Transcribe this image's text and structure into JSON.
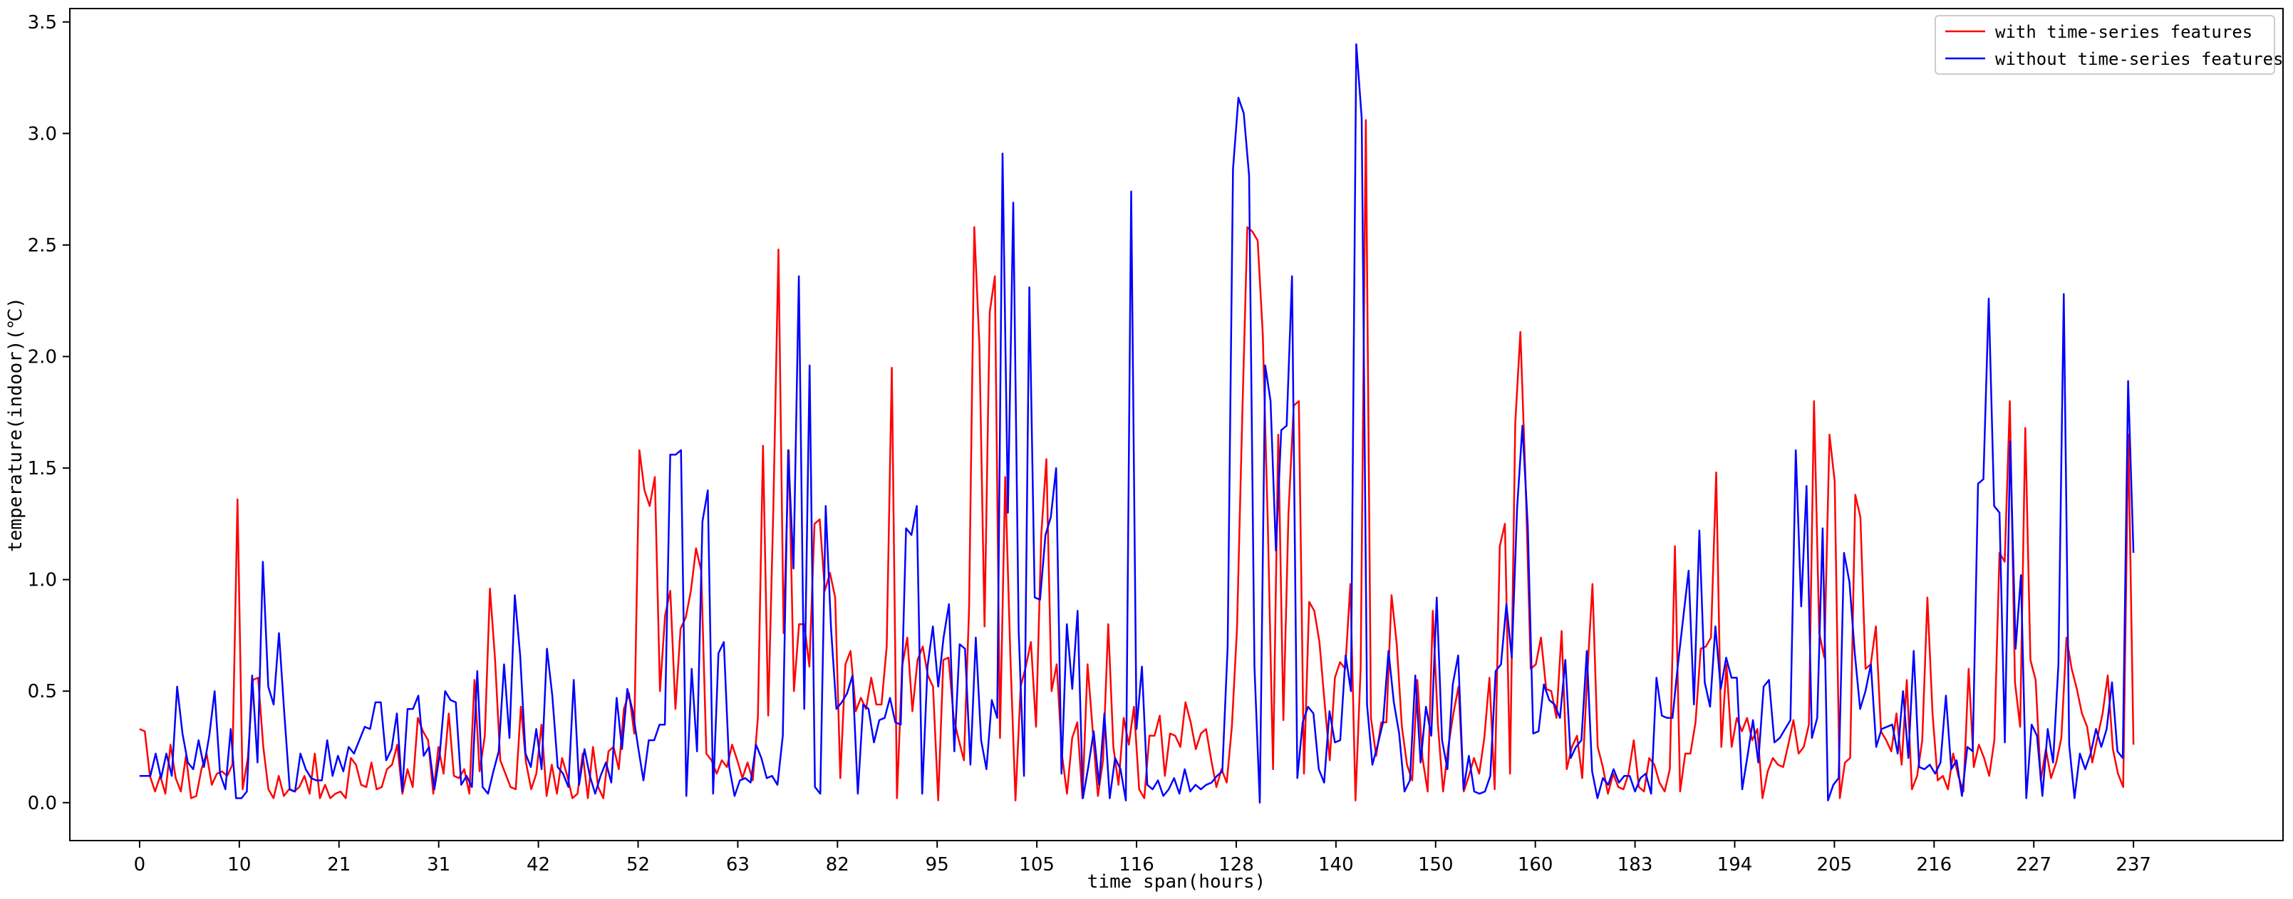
{
  "chart_data": {
    "type": "line",
    "xlabel": "time span(hours)",
    "ylabel": "temperature(indoor)(℃)",
    "xtick_labels": [
      "0",
      "10",
      "21",
      "31",
      "42",
      "52",
      "63",
      "82",
      "95",
      "105",
      "116",
      "128",
      "140",
      "150",
      "160",
      "183",
      "194",
      "205",
      "216",
      "227",
      "237"
    ],
    "yticks": [
      0.0,
      0.5,
      1.0,
      1.5,
      2.0,
      2.5,
      3.0,
      3.5
    ],
    "ytick_labels": [
      "0.0",
      "0.5",
      "1.0",
      "1.5",
      "2.0",
      "2.5",
      "3.0",
      "3.5"
    ],
    "ylim": [
      -0.17,
      3.56
    ],
    "xlim": [
      -7,
      215
    ],
    "grid": false,
    "legend_position": "top-right",
    "series": [
      {
        "name": "with time-series features",
        "color": "#ff0000",
        "values": [
          0.33,
          0.32,
          0.12,
          0.05,
          0.12,
          0.04,
          0.26,
          0.11,
          0.05,
          0.21,
          0.02,
          0.03,
          0.15,
          0.22,
          0.08,
          0.13,
          0.14,
          0.12,
          0.17,
          1.36,
          0.06,
          0.2,
          0.55,
          0.56,
          0.25,
          0.06,
          0.02,
          0.12,
          0.03,
          0.06,
          0.05,
          0.07,
          0.12,
          0.04,
          0.22,
          0.02,
          0.08,
          0.02,
          0.04,
          0.05,
          0.02,
          0.2,
          0.17,
          0.08,
          0.07,
          0.18,
          0.06,
          0.07,
          0.15,
          0.17,
          0.26,
          0.04,
          0.15,
          0.07,
          0.38,
          0.32,
          0.28,
          0.04,
          0.25,
          0.13,
          0.4,
          0.12,
          0.11,
          0.15,
          0.04,
          0.55,
          0.14,
          0.3,
          0.96,
          0.64,
          0.19,
          0.13,
          0.07,
          0.06,
          0.43,
          0.18,
          0.06,
          0.13,
          0.35,
          0.03,
          0.17,
          0.04,
          0.2,
          0.12,
          0.02,
          0.04,
          0.22,
          0.02,
          0.25,
          0.07,
          0.02,
          0.23,
          0.25,
          0.15,
          0.42,
          0.49,
          0.31,
          1.58,
          1.4,
          1.33,
          1.46,
          0.5,
          0.84,
          0.95,
          0.42,
          0.78,
          0.83,
          0.95,
          1.14,
          1.04,
          0.22,
          0.19,
          0.13,
          0.19,
          0.16,
          0.26,
          0.19,
          0.11,
          0.18,
          0.1,
          0.38,
          1.6,
          0.39,
          1.32,
          2.48,
          0.76,
          1.58,
          0.5,
          0.8,
          0.8,
          0.61,
          1.25,
          1.27,
          0.95,
          1.03,
          0.92,
          0.11,
          0.62,
          0.68,
          0.41,
          0.47,
          0.42,
          0.56,
          0.44,
          0.44,
          0.7,
          1.95,
          0.02,
          0.61,
          0.74,
          0.41,
          0.64,
          0.7,
          0.57,
          0.52,
          0.01,
          0.64,
          0.65,
          0.38,
          0.28,
          0.19,
          0.87,
          2.58,
          2.05,
          0.79,
          2.2,
          2.36,
          0.29,
          1.46,
          0.66,
          0.01,
          0.52,
          0.61,
          0.72,
          0.34,
          1.2,
          1.54,
          0.5,
          0.62,
          0.22,
          0.04,
          0.29,
          0.36,
          0.02,
          0.62,
          0.32,
          0.03,
          0.19,
          0.8,
          0.25,
          0.08,
          0.38,
          0.26,
          0.43,
          0.06,
          0.02,
          0.3,
          0.3,
          0.39,
          0.12,
          0.31,
          0.3,
          0.25,
          0.45,
          0.36,
          0.24,
          0.31,
          0.33,
          0.19,
          0.07,
          0.15,
          0.09,
          0.34,
          0.78,
          1.72,
          2.58,
          2.56,
          2.52,
          2.1,
          1.23,
          0.15,
          1.65,
          0.37,
          1.3,
          1.78,
          1.8,
          0.13,
          0.9,
          0.86,
          0.72,
          0.45,
          0.19,
          0.56,
          0.63,
          0.6,
          0.98,
          0.01,
          0.61,
          3.06,
          0.38,
          0.21,
          0.36,
          0.36,
          0.93,
          0.71,
          0.34,
          0.17,
          0.1,
          0.55,
          0.2,
          0.05,
          0.86,
          0.35,
          0.05,
          0.25,
          0.4,
          0.52,
          0.05,
          0.12,
          0.2,
          0.13,
          0.29,
          0.56,
          0.06,
          1.15,
          1.25,
          0.13,
          1.7,
          2.11,
          1.45,
          0.6,
          0.62,
          0.74,
          0.51,
          0.5,
          0.38,
          0.77,
          0.15,
          0.25,
          0.3,
          0.11,
          0.58,
          0.98,
          0.25,
          0.16,
          0.04,
          0.13,
          0.07,
          0.06,
          0.13,
          0.28,
          0.07,
          0.05,
          0.2,
          0.17,
          0.09,
          0.05,
          0.15,
          1.15,
          0.05,
          0.22,
          0.22,
          0.36,
          0.69,
          0.7,
          0.74,
          1.48,
          0.25,
          0.62,
          0.25,
          0.38,
          0.32,
          0.38,
          0.28,
          0.33,
          0.02,
          0.14,
          0.2,
          0.17,
          0.16,
          0.26,
          0.37,
          0.22,
          0.25,
          0.35,
          1.8,
          0.76,
          0.65,
          1.65,
          1.44,
          0.02,
          0.18,
          0.2,
          1.38,
          1.28,
          0.6,
          0.62,
          0.79,
          0.32,
          0.28,
          0.23,
          0.4,
          0.17,
          0.55,
          0.06,
          0.12,
          0.28,
          0.92,
          0.4,
          0.1,
          0.12,
          0.06,
          0.22,
          0.12,
          0.05,
          0.6,
          0.16,
          0.26,
          0.2,
          0.12,
          0.28,
          1.12,
          1.08,
          1.8,
          0.54,
          0.34,
          1.68,
          0.64,
          0.55,
          0.1,
          0.24,
          0.11,
          0.18,
          0.29,
          0.74,
          0.6,
          0.51,
          0.4,
          0.34,
          0.18,
          0.29,
          0.4,
          0.57,
          0.24,
          0.13,
          0.07,
          1.65,
          0.26
        ]
      },
      {
        "name": "without time-series features",
        "color": "#0000ff",
        "values": [
          0.12,
          0.12,
          0.12,
          0.22,
          0.11,
          0.22,
          0.12,
          0.52,
          0.31,
          0.18,
          0.15,
          0.28,
          0.16,
          0.3,
          0.5,
          0.13,
          0.06,
          0.33,
          0.02,
          0.02,
          0.05,
          0.57,
          0.18,
          1.08,
          0.52,
          0.44,
          0.76,
          0.4,
          0.06,
          0.05,
          0.22,
          0.15,
          0.11,
          0.1,
          0.1,
          0.28,
          0.12,
          0.21,
          0.14,
          0.25,
          0.22,
          0.28,
          0.34,
          0.33,
          0.45,
          0.45,
          0.19,
          0.24,
          0.4,
          0.05,
          0.42,
          0.42,
          0.48,
          0.21,
          0.25,
          0.06,
          0.22,
          0.5,
          0.46,
          0.45,
          0.08,
          0.12,
          0.07,
          0.59,
          0.07,
          0.04,
          0.14,
          0.23,
          0.62,
          0.29,
          0.93,
          0.66,
          0.22,
          0.16,
          0.33,
          0.15,
          0.69,
          0.48,
          0.16,
          0.13,
          0.07,
          0.55,
          0.08,
          0.24,
          0.12,
          0.04,
          0.12,
          0.18,
          0.09,
          0.47,
          0.24,
          0.51,
          0.41,
          0.25,
          0.1,
          0.28,
          0.28,
          0.35,
          0.35,
          1.56,
          1.56,
          1.58,
          0.03,
          0.6,
          0.23,
          1.26,
          1.4,
          0.04,
          0.67,
          0.72,
          0.16,
          0.03,
          0.1,
          0.11,
          0.09,
          0.26,
          0.2,
          0.11,
          0.12,
          0.08,
          0.3,
          1.58,
          1.05,
          2.36,
          0.42,
          1.96,
          0.07,
          0.04,
          1.33,
          0.78,
          0.42,
          0.45,
          0.49,
          0.57,
          0.04,
          0.44,
          0.42,
          0.27,
          0.37,
          0.38,
          0.47,
          0.36,
          0.35,
          1.23,
          1.2,
          1.33,
          0.04,
          0.61,
          0.79,
          0.52,
          0.74,
          0.89,
          0.23,
          0.71,
          0.69,
          0.17,
          0.74,
          0.28,
          0.15,
          0.46,
          0.38,
          2.91,
          1.3,
          2.69,
          0.77,
          0.12,
          2.31,
          0.92,
          0.91,
          1.2,
          1.28,
          1.5,
          0.13,
          0.8,
          0.51,
          0.86,
          0.02,
          0.16,
          0.32,
          0.08,
          0.4,
          0.02,
          0.2,
          0.15,
          0.01,
          2.74,
          0.33,
          0.61,
          0.08,
          0.06,
          0.1,
          0.03,
          0.06,
          0.11,
          0.04,
          0.15,
          0.05,
          0.08,
          0.06,
          0.08,
          0.09,
          0.12,
          0.14,
          0.7,
          2.84,
          3.16,
          3.09,
          2.81,
          0.61,
          0.0,
          1.96,
          1.8,
          1.13,
          1.67,
          1.69,
          2.36,
          0.11,
          0.36,
          0.43,
          0.4,
          0.15,
          0.09,
          0.41,
          0.27,
          0.28,
          0.66,
          0.5,
          3.4,
          3.07,
          0.44,
          0.17,
          0.26,
          0.36,
          0.68,
          0.45,
          0.31,
          0.05,
          0.1,
          0.57,
          0.18,
          0.43,
          0.3,
          0.92,
          0.28,
          0.15,
          0.53,
          0.66,
          0.06,
          0.21,
          0.05,
          0.04,
          0.05,
          0.12,
          0.59,
          0.62,
          0.89,
          0.65,
          1.32,
          1.69,
          1.24,
          0.31,
          0.32,
          0.53,
          0.46,
          0.44,
          0.38,
          0.64,
          0.2,
          0.25,
          0.28,
          0.68,
          0.14,
          0.02,
          0.11,
          0.08,
          0.15,
          0.09,
          0.12,
          0.12,
          0.05,
          0.11,
          0.13,
          0.04,
          0.56,
          0.39,
          0.38,
          0.38,
          0.62,
          0.83,
          1.04,
          0.44,
          1.22,
          0.54,
          0.43,
          0.79,
          0.51,
          0.65,
          0.56,
          0.56,
          0.06,
          0.21,
          0.37,
          0.18,
          0.52,
          0.55,
          0.27,
          0.29,
          0.33,
          0.37,
          1.58,
          0.88,
          1.42,
          0.29,
          0.38,
          1.23,
          0.01,
          0.08,
          0.11,
          1.12,
          0.99,
          0.67,
          0.42,
          0.5,
          0.62,
          0.25,
          0.33,
          0.34,
          0.35,
          0.22,
          0.5,
          0.2,
          0.68,
          0.16,
          0.15,
          0.17,
          0.13,
          0.18,
          0.48,
          0.15,
          0.19,
          0.03,
          0.25,
          0.23,
          1.43,
          1.45,
          2.26,
          1.33,
          1.3,
          0.27,
          1.62,
          0.69,
          1.02,
          0.02,
          0.35,
          0.3,
          0.03,
          0.33,
          0.18,
          0.62,
          2.28,
          0.26,
          0.02,
          0.22,
          0.15,
          0.22,
          0.33,
          0.25,
          0.33,
          0.54,
          0.23,
          0.2,
          1.89,
          1.12
        ]
      }
    ]
  }
}
